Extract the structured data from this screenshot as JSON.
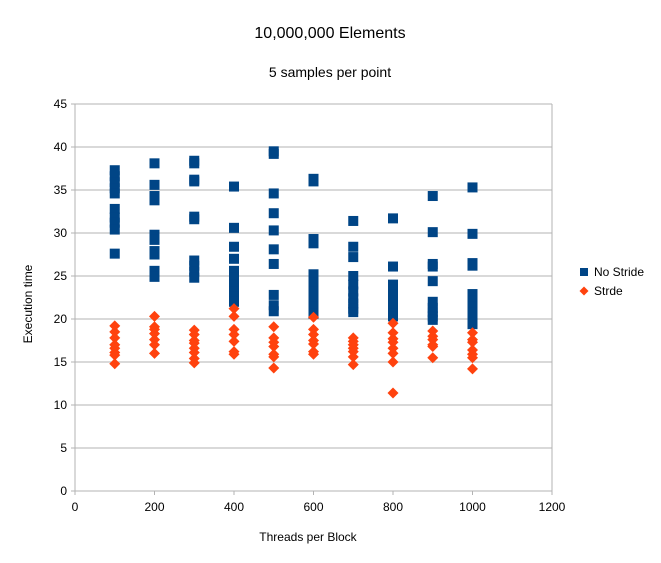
{
  "chart_data": {
    "type": "scatter",
    "title": "10,000,000 Elements",
    "subtitle": "5 samples per point",
    "xlabel": "Threads per Block",
    "ylabel": "Execution time",
    "xlim": [
      0,
      1200
    ],
    "ylim": [
      0,
      45
    ],
    "x_ticks": [
      0,
      200,
      400,
      600,
      800,
      1000,
      1200
    ],
    "y_ticks": [
      0,
      5,
      10,
      15,
      20,
      25,
      30,
      35,
      40,
      45
    ],
    "grid": true,
    "legend_position": "right",
    "series": [
      {
        "name": "No Stride",
        "color": "#004586",
        "marker": "square",
        "points": [
          [
            100,
            37.3
          ],
          [
            100,
            36.6
          ],
          [
            100,
            35.9
          ],
          [
            100,
            35.2
          ],
          [
            100,
            34.6
          ],
          [
            100,
            32.8
          ],
          [
            100,
            31.8
          ],
          [
            100,
            31.2
          ],
          [
            100,
            30.4
          ],
          [
            100,
            27.6
          ],
          [
            200,
            38.1
          ],
          [
            200,
            35.6
          ],
          [
            200,
            34.3
          ],
          [
            200,
            33.8
          ],
          [
            200,
            29.8
          ],
          [
            200,
            29.2
          ],
          [
            200,
            27.9
          ],
          [
            200,
            27.5
          ],
          [
            200,
            25.6
          ],
          [
            200,
            24.9
          ],
          [
            300,
            38.4
          ],
          [
            300,
            38.1
          ],
          [
            300,
            36.2
          ],
          [
            300,
            36.0
          ],
          [
            300,
            31.9
          ],
          [
            300,
            31.6
          ],
          [
            300,
            26.8
          ],
          [
            300,
            26.2
          ],
          [
            300,
            25.5
          ],
          [
            300,
            24.8
          ],
          [
            400,
            35.4
          ],
          [
            400,
            30.6
          ],
          [
            400,
            28.4
          ],
          [
            400,
            27.0
          ],
          [
            400,
            25.6
          ],
          [
            400,
            24.8
          ],
          [
            400,
            24.0
          ],
          [
            400,
            23.2
          ],
          [
            400,
            22.6
          ],
          [
            400,
            22.0
          ],
          [
            500,
            39.5
          ],
          [
            500,
            39.2
          ],
          [
            500,
            34.6
          ],
          [
            500,
            32.3
          ],
          [
            500,
            30.3
          ],
          [
            500,
            28.1
          ],
          [
            500,
            26.4
          ],
          [
            500,
            22.8
          ],
          [
            500,
            21.6
          ],
          [
            500,
            20.9
          ],
          [
            600,
            36.3
          ],
          [
            600,
            36.0
          ],
          [
            600,
            29.3
          ],
          [
            600,
            28.8
          ],
          [
            600,
            25.2
          ],
          [
            600,
            24.2
          ],
          [
            600,
            23.2
          ],
          [
            600,
            22.2
          ],
          [
            600,
            21.4
          ],
          [
            600,
            20.6
          ],
          [
            700,
            31.4
          ],
          [
            700,
            28.4
          ],
          [
            700,
            27.2
          ],
          [
            700,
            25.0
          ],
          [
            700,
            24.0
          ],
          [
            700,
            23.2
          ],
          [
            700,
            22.4
          ],
          [
            700,
            21.8
          ],
          [
            700,
            21.2
          ],
          [
            700,
            20.8
          ],
          [
            800,
            31.7
          ],
          [
            800,
            26.1
          ],
          [
            800,
            24.0
          ],
          [
            800,
            23.4
          ],
          [
            800,
            22.8
          ],
          [
            800,
            22.2
          ],
          [
            800,
            21.6
          ],
          [
            800,
            21.0
          ],
          [
            800,
            20.6
          ],
          [
            800,
            20.3
          ],
          [
            900,
            34.3
          ],
          [
            900,
            30.1
          ],
          [
            900,
            26.4
          ],
          [
            900,
            26.1
          ],
          [
            900,
            24.4
          ],
          [
            900,
            22.0
          ],
          [
            900,
            21.3
          ],
          [
            900,
            20.8
          ],
          [
            900,
            20.3
          ],
          [
            900,
            19.9
          ],
          [
            1000,
            35.3
          ],
          [
            1000,
            29.9
          ],
          [
            1000,
            26.5
          ],
          [
            1000,
            26.2
          ],
          [
            1000,
            22.9
          ],
          [
            1000,
            22.1
          ],
          [
            1000,
            21.4
          ],
          [
            1000,
            20.7
          ],
          [
            1000,
            20.0
          ],
          [
            1000,
            19.4
          ]
        ]
      },
      {
        "name": "Strde",
        "color": "#ff420e",
        "marker": "diamond",
        "points": [
          [
            100,
            19.2
          ],
          [
            100,
            18.5
          ],
          [
            100,
            17.8
          ],
          [
            100,
            17.0
          ],
          [
            100,
            16.6
          ],
          [
            100,
            16.1
          ],
          [
            100,
            15.8
          ],
          [
            100,
            14.8
          ],
          [
            200,
            20.3
          ],
          [
            200,
            19.1
          ],
          [
            200,
            18.8
          ],
          [
            200,
            18.3
          ],
          [
            200,
            17.6
          ],
          [
            200,
            17.0
          ],
          [
            200,
            16.0
          ],
          [
            300,
            18.7
          ],
          [
            300,
            18.2
          ],
          [
            300,
            17.5
          ],
          [
            300,
            17.2
          ],
          [
            300,
            16.6
          ],
          [
            300,
            16.1
          ],
          [
            300,
            15.4
          ],
          [
            300,
            14.9
          ],
          [
            400,
            21.2
          ],
          [
            400,
            20.3
          ],
          [
            400,
            18.8
          ],
          [
            400,
            18.2
          ],
          [
            400,
            17.4
          ],
          [
            400,
            16.2
          ],
          [
            400,
            15.9
          ],
          [
            500,
            19.1
          ],
          [
            500,
            17.8
          ],
          [
            500,
            17.3
          ],
          [
            500,
            16.8
          ],
          [
            500,
            15.9
          ],
          [
            500,
            15.6
          ],
          [
            500,
            14.3
          ],
          [
            600,
            20.2
          ],
          [
            600,
            18.8
          ],
          [
            600,
            18.2
          ],
          [
            600,
            17.5
          ],
          [
            600,
            17.1
          ],
          [
            600,
            16.2
          ],
          [
            600,
            15.9
          ],
          [
            700,
            17.8
          ],
          [
            700,
            17.4
          ],
          [
            700,
            17.0
          ],
          [
            700,
            16.6
          ],
          [
            700,
            16.2
          ],
          [
            700,
            15.6
          ],
          [
            700,
            14.7
          ],
          [
            800,
            19.5
          ],
          [
            800,
            18.4
          ],
          [
            800,
            17.7
          ],
          [
            800,
            17.3
          ],
          [
            800,
            16.6
          ],
          [
            800,
            16.0
          ],
          [
            800,
            15.0
          ],
          [
            800,
            11.4
          ],
          [
            900,
            18.6
          ],
          [
            900,
            18.0
          ],
          [
            900,
            17.6
          ],
          [
            900,
            17.0
          ],
          [
            900,
            16.8
          ],
          [
            900,
            15.5
          ],
          [
            1000,
            18.4
          ],
          [
            1000,
            17.6
          ],
          [
            1000,
            17.3
          ],
          [
            1000,
            16.4
          ],
          [
            1000,
            15.9
          ],
          [
            1000,
            15.5
          ],
          [
            1000,
            14.2
          ]
        ]
      }
    ]
  }
}
